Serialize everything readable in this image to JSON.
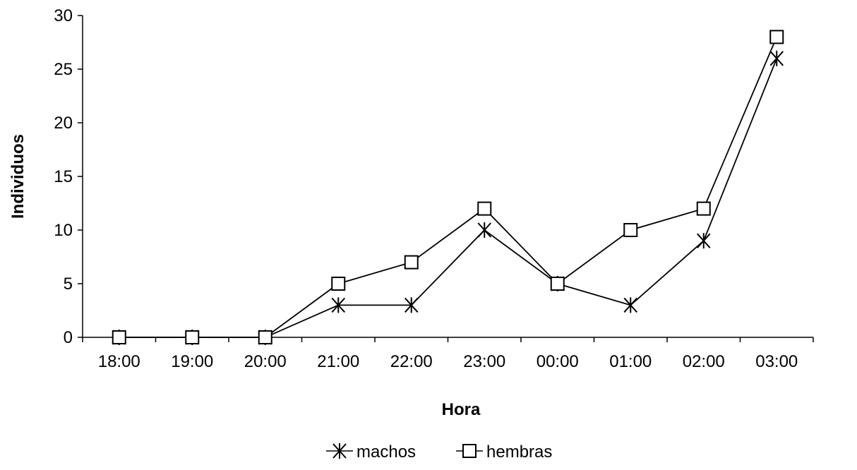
{
  "chart_data": {
    "type": "line",
    "categories": [
      "18:00",
      "19:00",
      "20:00",
      "21:00",
      "22:00",
      "23:00",
      "00:00",
      "01:00",
      "02:00",
      "03:00"
    ],
    "series": [
      {
        "name": "machos",
        "marker": "asterisk",
        "color": "#000000",
        "values": [
          0,
          0,
          0,
          3,
          3,
          10,
          5,
          3,
          9,
          26
        ]
      },
      {
        "name": "hembras",
        "marker": "square",
        "color": "#000000",
        "values": [
          0,
          0,
          0,
          5,
          7,
          12,
          5,
          10,
          12,
          28
        ]
      }
    ],
    "title": "",
    "xlabel": "Hora",
    "ylabel": "Individuos",
    "ylim": [
      0,
      30
    ],
    "yticks": [
      0,
      5,
      10,
      15,
      20,
      25,
      30
    ],
    "grid": false,
    "legend_position": "bottom"
  }
}
